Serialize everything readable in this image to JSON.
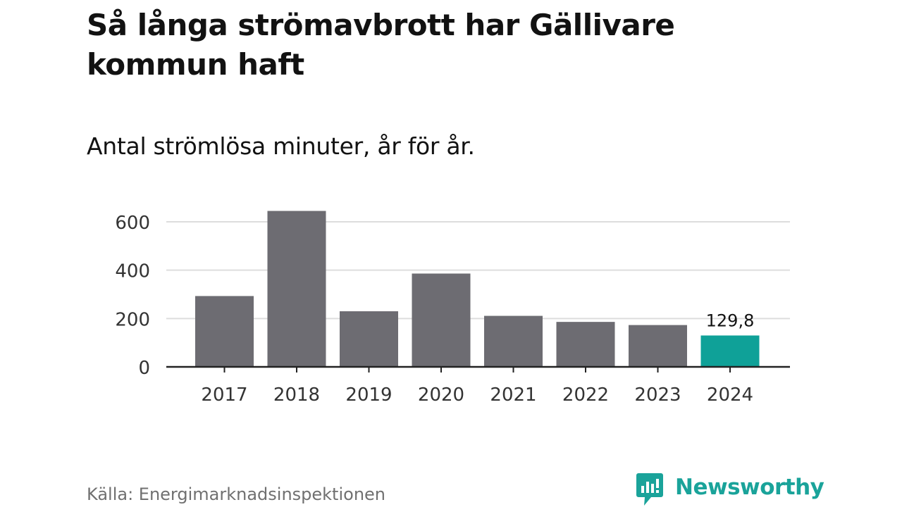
{
  "header": {
    "title": "Så långa strömavbrott har Gällivare kommun haft",
    "subtitle": "Antal strömlösa minuter, år för år."
  },
  "footer": {
    "source": "Källa: Energimarknadsinspektionen",
    "brand": "Newsworthy"
  },
  "colors": {
    "bar_default": "#6d6c72",
    "bar_highlight": "#0fa198",
    "grid": "#dddddd",
    "axis": "#222222",
    "brand": "#1aa39a"
  },
  "icons": {
    "brand_logo": "newsworthy-logo-icon"
  },
  "chart_data": {
    "type": "bar",
    "title": "Så långa strömavbrott har Gällivare kommun haft",
    "subtitle": "Antal strömlösa minuter, år för år.",
    "categories": [
      "2017",
      "2018",
      "2019",
      "2020",
      "2021",
      "2022",
      "2023",
      "2024"
    ],
    "values": [
      293,
      645,
      230,
      386,
      211,
      186,
      173,
      129.8
    ],
    "highlight_index": 7,
    "data_labels": [
      {
        "index": 7,
        "text": "129,8"
      }
    ],
    "yticks": [
      0,
      200,
      400,
      600
    ],
    "ytick_labels": [
      "0",
      "200",
      "400",
      "600"
    ],
    "ylim": [
      0,
      650
    ],
    "xlabel": "",
    "ylabel": "",
    "grid": true
  }
}
